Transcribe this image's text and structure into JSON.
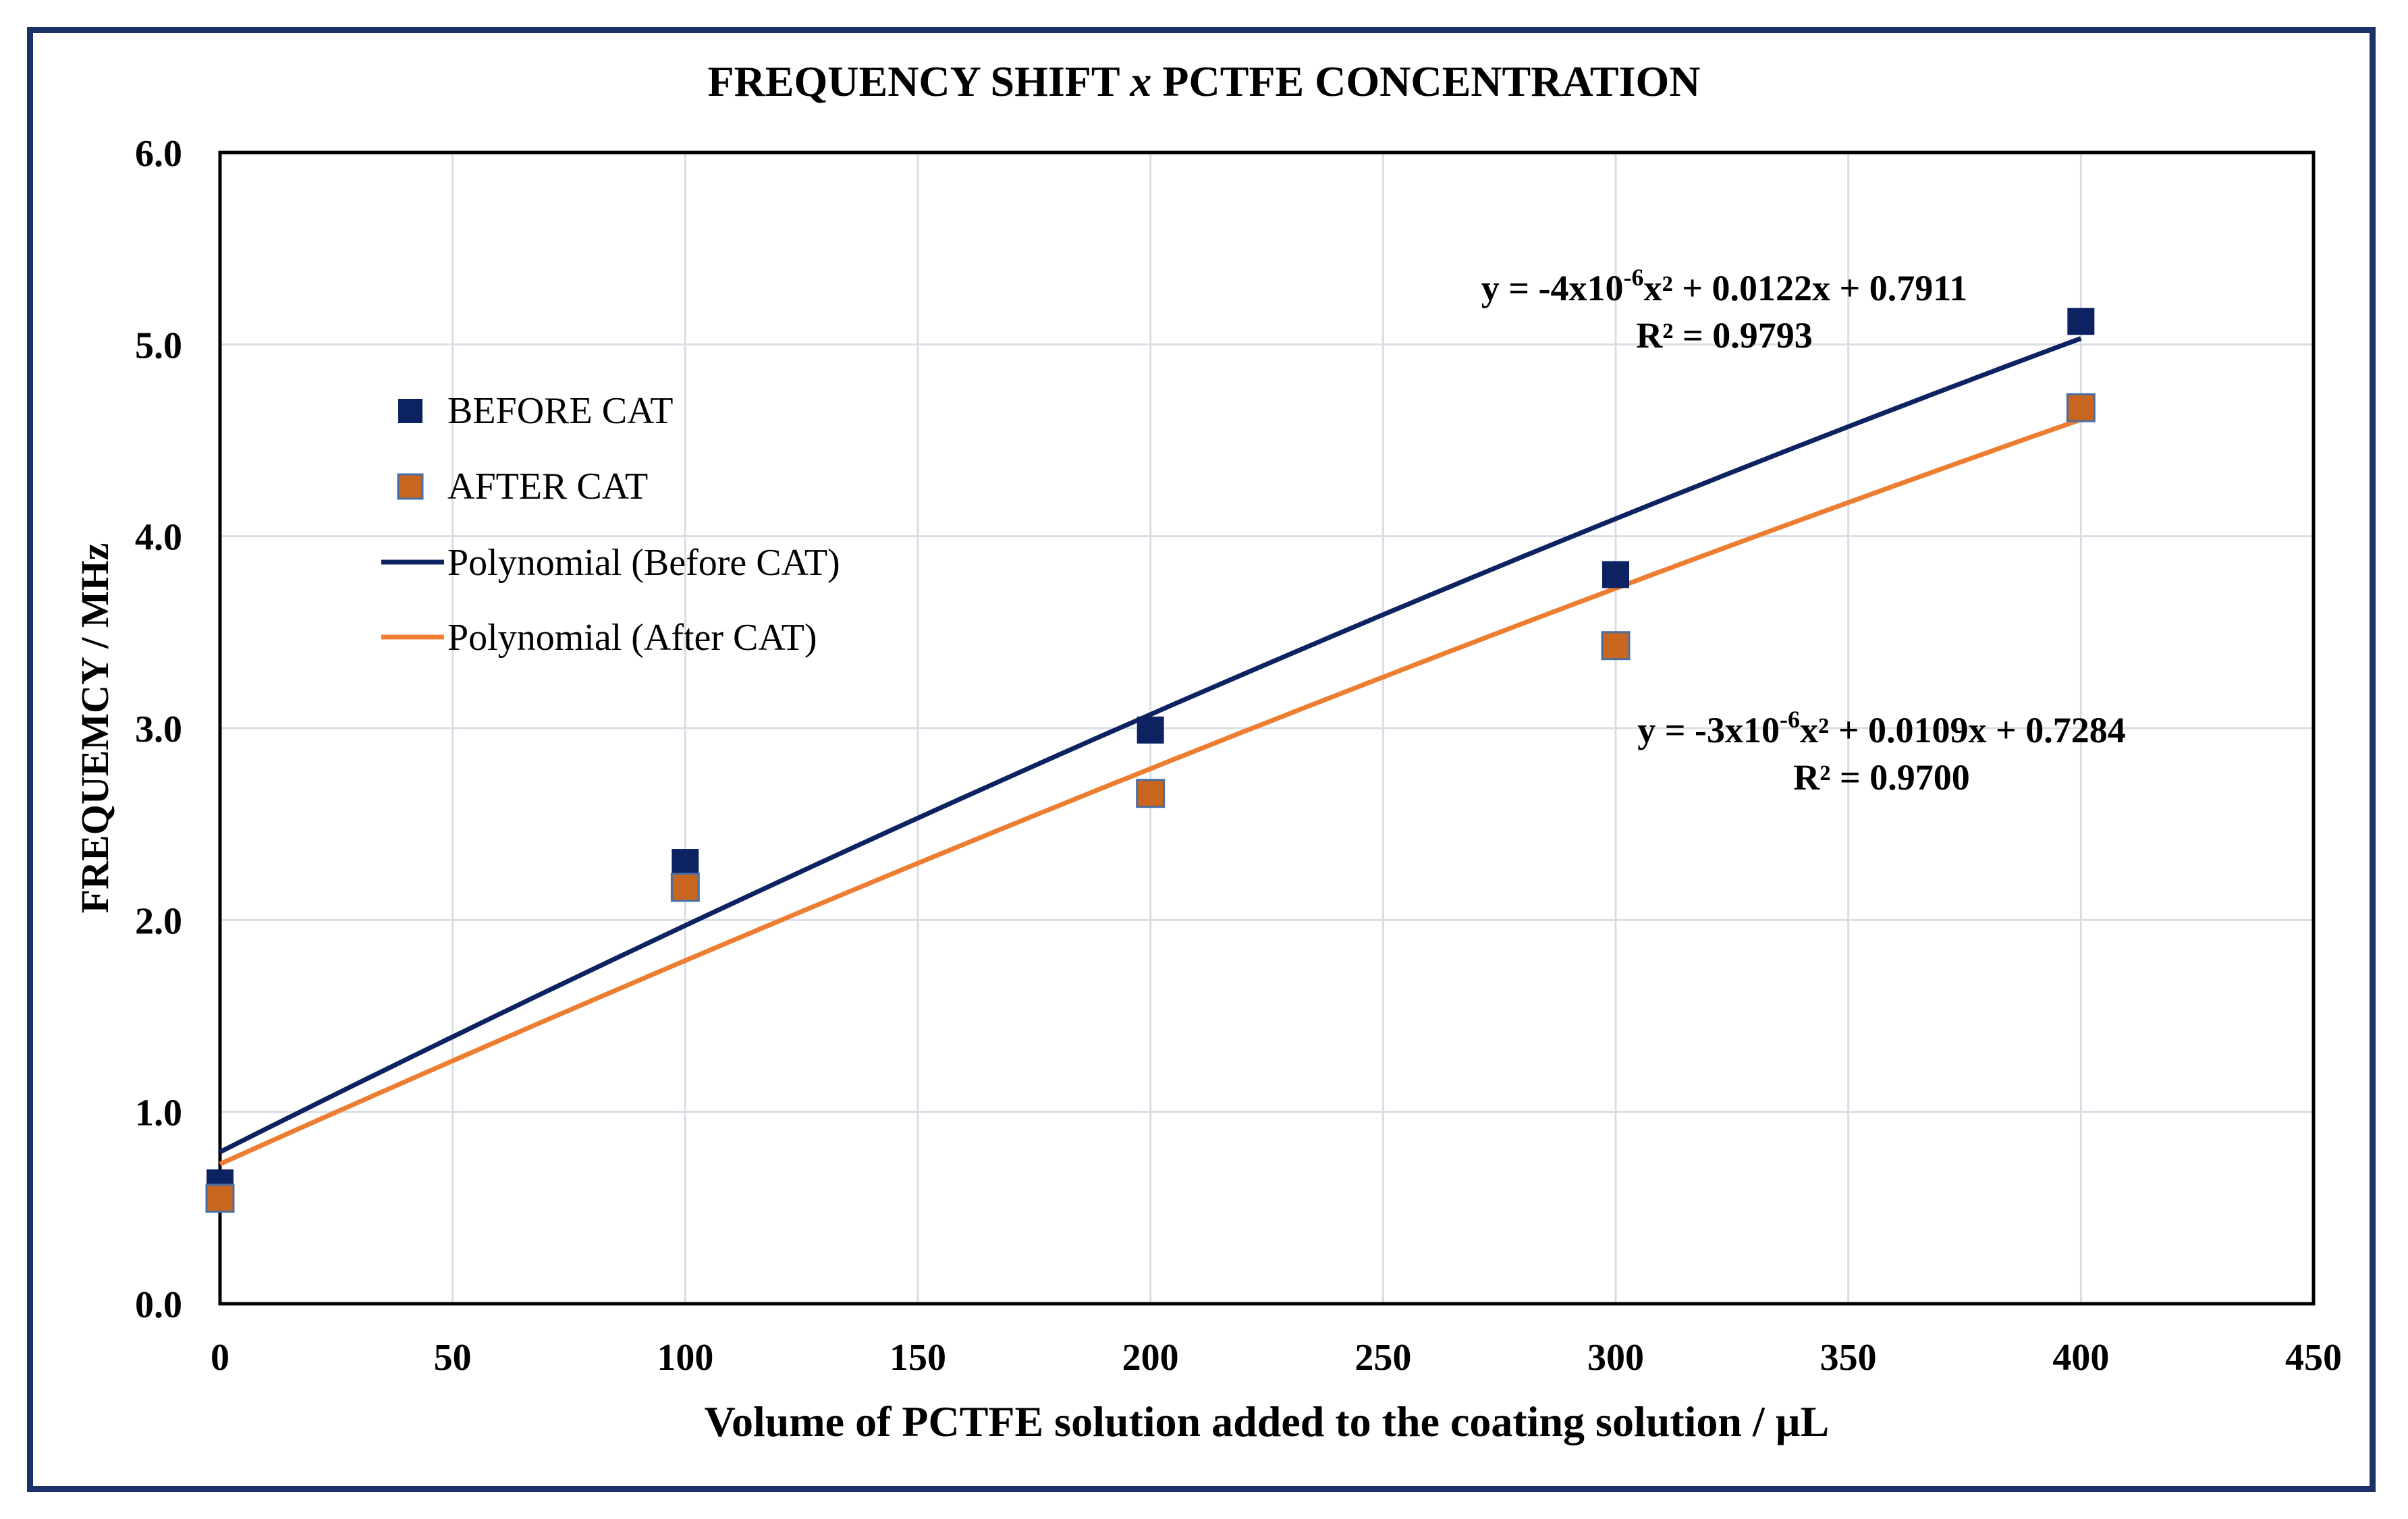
{
  "chart_data": {
    "type": "scatter",
    "title": "FREQUENCY SHIFT ",
    "title_italic": "x",
    "title_rest": " PCTFE CONCENTRATION",
    "xlabel": "Volume of PCTFE solution added to the coating solution / µL",
    "ylabel": "FREQUEMCY / MHz",
    "xlim": [
      0,
      450
    ],
    "ylim": [
      0,
      6
    ],
    "xticks": [
      0,
      50,
      100,
      150,
      200,
      250,
      300,
      350,
      400,
      450
    ],
    "yticks": [
      "0.0",
      "1.0",
      "2.0",
      "3.0",
      "4.0",
      "5.0",
      "6.0"
    ],
    "grid": true,
    "legend_position": "left",
    "series": [
      {
        "name": "BEFORE CAT",
        "color": "#0d2260",
        "x": [
          0,
          100,
          200,
          300,
          400
        ],
        "y": [
          0.63,
          2.3,
          2.99,
          3.8,
          5.12
        ]
      },
      {
        "name": "AFTER CAT",
        "color": "#c8651e",
        "x": [
          0,
          100,
          200,
          300,
          400
        ],
        "y": [
          0.55,
          2.17,
          2.66,
          3.43,
          4.67
        ]
      }
    ],
    "trendlines": [
      {
        "name": "Polynomial (Before CAT)",
        "color": "#0d2260",
        "coeffs": [
          -4e-06,
          0.0122,
          0.7911
        ],
        "equation_prefix": "y = -4x10",
        "equation_exp": "-6",
        "equation_suffix": "x² + 0.0122x + 0.7911",
        "r2": "R² = 0.9793"
      },
      {
        "name": "Polynomial (After CAT)",
        "color": "#ed7d31",
        "coeffs": [
          -3e-06,
          0.0109,
          0.7284
        ],
        "equation_prefix": "y = -3x10",
        "equation_exp": "-6",
        "equation_suffix": "x² + 0.0109x + 0.7284",
        "r2": "R² = 0.9700"
      }
    ]
  },
  "colors": {
    "frame": "#1b3168",
    "grid": "#d9dde6",
    "axis": "#000000"
  }
}
